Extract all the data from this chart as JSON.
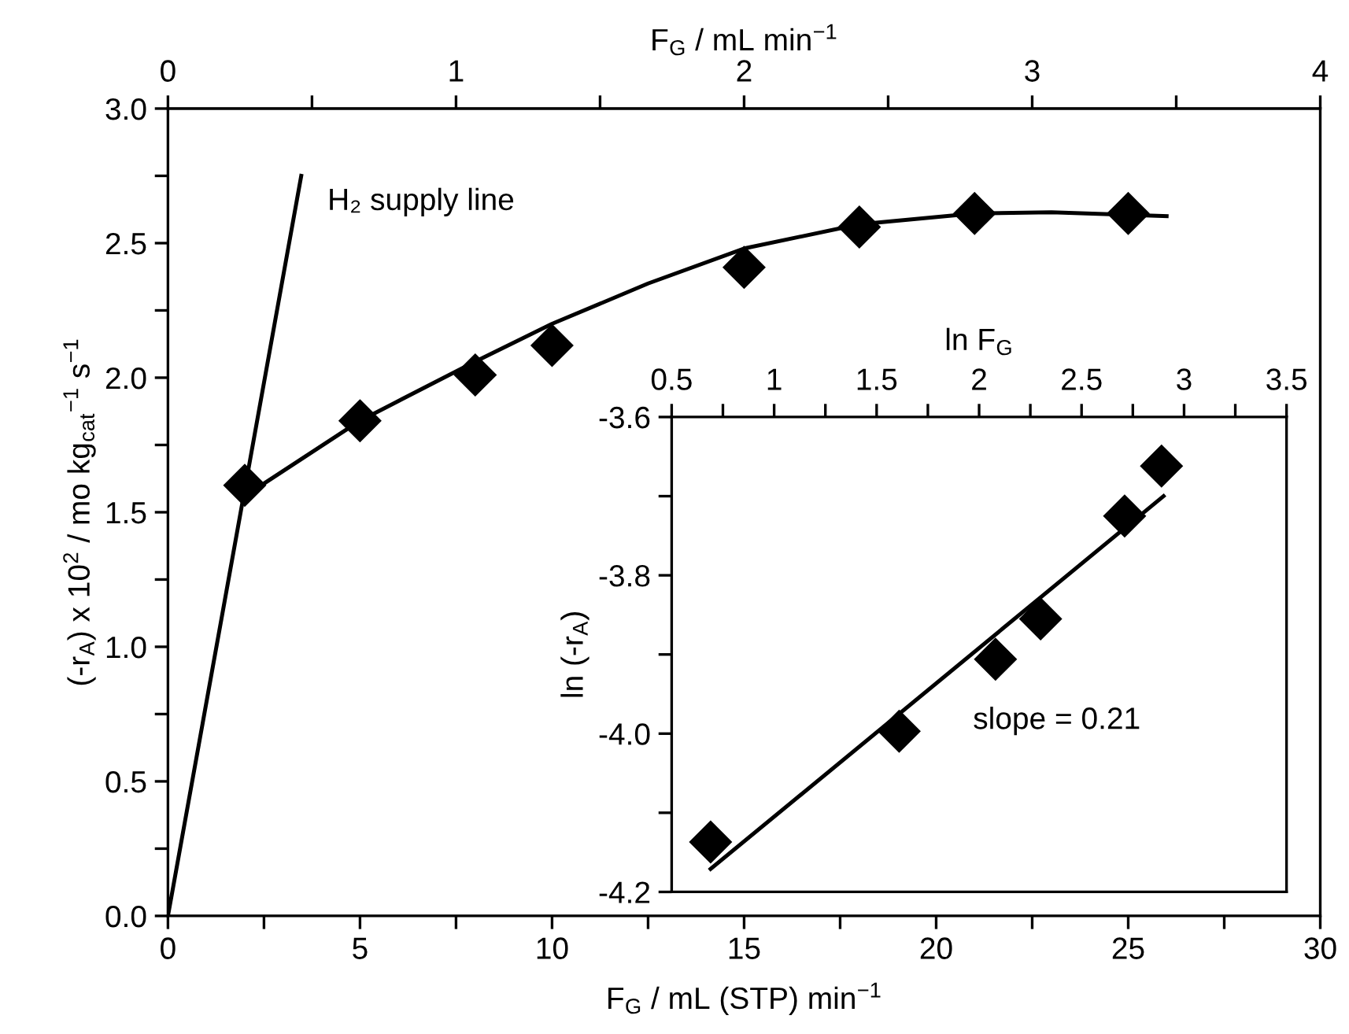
{
  "chart_data": [
    {
      "type": "scatter",
      "xlabel": "F$_{G}$ / mL (STP) min$^{−1}$",
      "ylabel": "(-r$_{A}$) x 10$^{2}$ / mo kg$_{cat}$$^{−1}$ s$^{−1}$",
      "x2label": "F$_{G}$ / mL min$^{−1}$",
      "xlim": [
        0,
        30
      ],
      "ylim": [
        0,
        3.0
      ],
      "x2lim": [
        0,
        4
      ],
      "xticks": [
        0,
        {
          "value": 2.5,
          "label": null
        },
        5,
        {
          "value": 7.5,
          "label": null
        },
        10,
        {
          "value": 12.5,
          "label": null
        },
        15,
        {
          "value": 17.5,
          "label": null
        },
        20,
        {
          "value": 22.5,
          "label": null
        },
        25,
        {
          "value": 27.5,
          "label": null
        },
        30
      ],
      "yticks": [
        {
          "value": 0,
          "label": "0.0"
        },
        {
          "value": 0.25,
          "label": null
        },
        {
          "value": 0.5,
          "label": "0.5"
        },
        {
          "value": 0.75,
          "label": null
        },
        {
          "value": 1.0,
          "label": "1.0"
        },
        {
          "value": 1.25,
          "label": null
        },
        {
          "value": 1.5,
          "label": "1.5"
        },
        {
          "value": 1.75,
          "label": null
        },
        {
          "value": 2.0,
          "label": "2.0"
        },
        {
          "value": 2.25,
          "label": null
        },
        {
          "value": 2.5,
          "label": "2.5"
        },
        {
          "value": 2.75,
          "label": null
        },
        {
          "value": 3.0,
          "label": "3.0"
        }
      ],
      "x2ticks": [
        0,
        {
          "value": 0.5,
          "label": null
        },
        1,
        {
          "value": 1.5,
          "label": null
        },
        2,
        {
          "value": 2.5,
          "label": null
        },
        3,
        {
          "value": 3.5,
          "label": null
        },
        4
      ],
      "grid": false,
      "legend": false,
      "series": [
        {
          "type": "scatter",
          "marker": "diamond",
          "color": "#000000",
          "x": [
            2,
            5,
            8,
            10,
            15,
            18,
            21,
            25
          ],
          "values": [
            1.6,
            1.84,
            2.01,
            2.12,
            2.41,
            2.56,
            2.61,
            2.61
          ]
        },
        {
          "type": "line",
          "marker": "none",
          "line_style": "solid",
          "color": "#000000",
          "x": [
            2,
            5,
            8,
            10,
            12.5,
            15,
            18,
            21,
            23,
            26
          ],
          "values": [
            1.56,
            1.84,
            2.06,
            2.2,
            2.35,
            2.48,
            2.57,
            2.61,
            2.615,
            2.6
          ]
        },
        {
          "type": "line",
          "marker": "none",
          "line_style": "solid",
          "color": "#000000",
          "x": [
            0,
            3.47
          ],
          "values": [
            0,
            2.75
          ]
        }
      ],
      "annotations": [
        {
          "text": "H₂ supply line",
          "x": 3.47,
          "y": 2.75
        }
      ]
    },
    {
      "type": "scatter",
      "xlabel": "ln F$_{G}$",
      "ylabel": "ln (-r$_{A}$)",
      "xlim": [
        0.5,
        3.5
      ],
      "ylim": [
        -4.2,
        -3.6
      ],
      "xticks": [
        0.5,
        {
          "value": 0.75,
          "label": null
        },
        1,
        {
          "value": 1.25,
          "label": null
        },
        1.5,
        {
          "value": 1.75,
          "label": null
        },
        2,
        {
          "value": 2.25,
          "label": null
        },
        2.5,
        {
          "value": 2.75,
          "label": null
        },
        3,
        {
          "value": 3.25,
          "label": null
        },
        3.5
      ],
      "yticks": [
        {
          "value": -4.2,
          "label": "-4.2"
        },
        {
          "value": -4.1,
          "label": null
        },
        {
          "value": -4.0,
          "label": "-4.0"
        },
        {
          "value": -3.9,
          "label": null
        },
        {
          "value": -3.8,
          "label": "-3.8"
        },
        {
          "value": -3.7,
          "label": null
        },
        {
          "value": -3.6,
          "label": "-3.6"
        }
      ],
      "grid": false,
      "legend": false,
      "series": [
        {
          "type": "scatter",
          "marker": "diamond",
          "color": "#000000",
          "x": [
            0.69,
            1.61,
            2.08,
            2.3,
            2.71,
            2.89
          ],
          "values": [
            -4.137,
            -3.997,
            -3.906,
            -3.855,
            -3.725,
            -3.662
          ]
        },
        {
          "type": "line",
          "marker": "none",
          "line_style": "solid",
          "color": "#000000",
          "x": [
            0.69,
            2.9
          ],
          "values": [
            -4.171,
            -3.7
          ]
        }
      ],
      "annotations": [
        "slope = 0.21"
      ]
    }
  ]
}
